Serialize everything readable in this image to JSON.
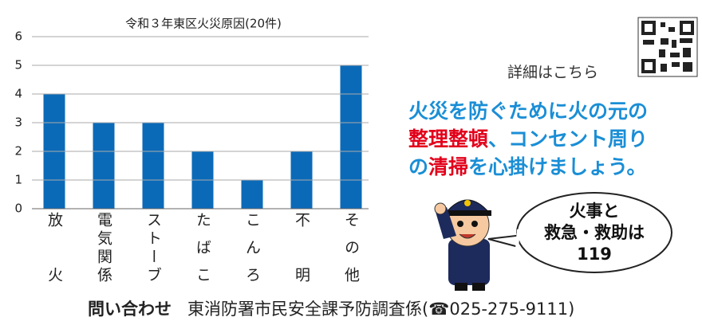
{
  "chart_data": {
    "type": "bar",
    "title": "令和３年東区火災原因(20件)",
    "categories": [
      "放火",
      "電気関係",
      "ストーブ",
      "たばこ",
      "こんろ",
      "不明",
      "その他"
    ],
    "values": [
      4,
      3,
      3,
      2,
      1,
      2,
      5
    ],
    "color": "#0b6ab8",
    "ylim": [
      0,
      6
    ],
    "yticks": [
      0,
      1,
      2,
      3,
      4,
      5,
      6
    ],
    "grid": true
  },
  "qr_note": "詳細はこちら",
  "message": [
    [
      "火災を防ぐために火の元の"
    ],
    [
      "整理整頓",
      "、コンセント周り"
    ],
    [
      "の",
      "清掃",
      "を心掛けましょう。"
    ]
  ],
  "bubble": [
    "火事と",
    "救急・救助は",
    "119"
  ],
  "footer": {
    "label": "問い合わせ",
    "text": "東消防署市民安全課予防調査係(☎025-275-9111)"
  }
}
